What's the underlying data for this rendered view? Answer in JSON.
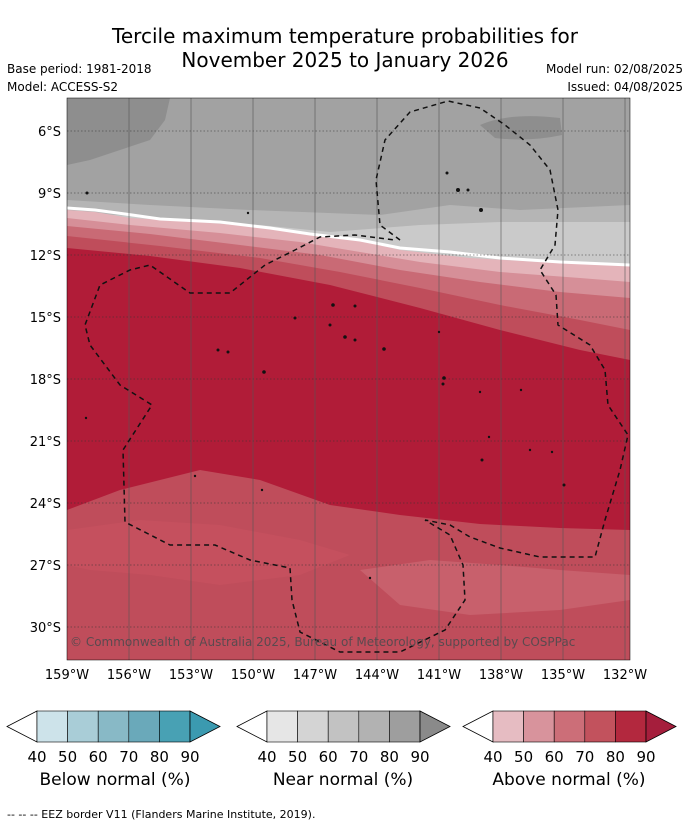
{
  "title_line1": "Tercile maximum temperature probabilities for",
  "title_line2": "November 2025 to January 2026",
  "base_period": "Base period: 1981-2018",
  "model": "Model: ACCESS-S2",
  "model_run": "Model run: 02/08/2025",
  "issued": "Issued: 04/08/2025",
  "copyright": "© Commonwealth of Australia 2025, Bureau of Meteorology, supported by COSPPac",
  "lat_labels": [
    "6°S",
    "9°S",
    "12°S",
    "15°S",
    "18°S",
    "21°S",
    "24°S",
    "27°S",
    "30°S"
  ],
  "lon_labels": [
    "159°W",
    "156°W",
    "153°W",
    "150°W",
    "147°W",
    "144°W",
    "141°W",
    "138°W",
    "135°W",
    "132°W"
  ],
  "colorbars": [
    {
      "title": "Below normal (%)",
      "ticks": [
        "40",
        "50",
        "60",
        "70",
        "80",
        "90"
      ],
      "colors": [
        "#ffffff",
        "#cde3ea",
        "#a9cdd7",
        "#88b9c6",
        "#6aa9ba",
        "#48a1b4"
      ]
    },
    {
      "title": "Near normal (%)",
      "ticks": [
        "40",
        "50",
        "60",
        "70",
        "80",
        "90"
      ],
      "colors": [
        "#ffffff",
        "#e6e6e6",
        "#d4d4d4",
        "#c2c2c2",
        "#b2b2b2",
        "#9e9e9e"
      ]
    },
    {
      "title": "Above normal (%)",
      "ticks": [
        "40",
        "50",
        "60",
        "70",
        "80",
        "90"
      ],
      "colors": [
        "#ffffff",
        "#e6bcc2",
        "#d8939c",
        "#cc6e78",
        "#c2525d",
        "#b3283e"
      ]
    }
  ],
  "footer": "--  --  -- EEZ border V11 (Flanders Marine Institute, 2019)."
}
